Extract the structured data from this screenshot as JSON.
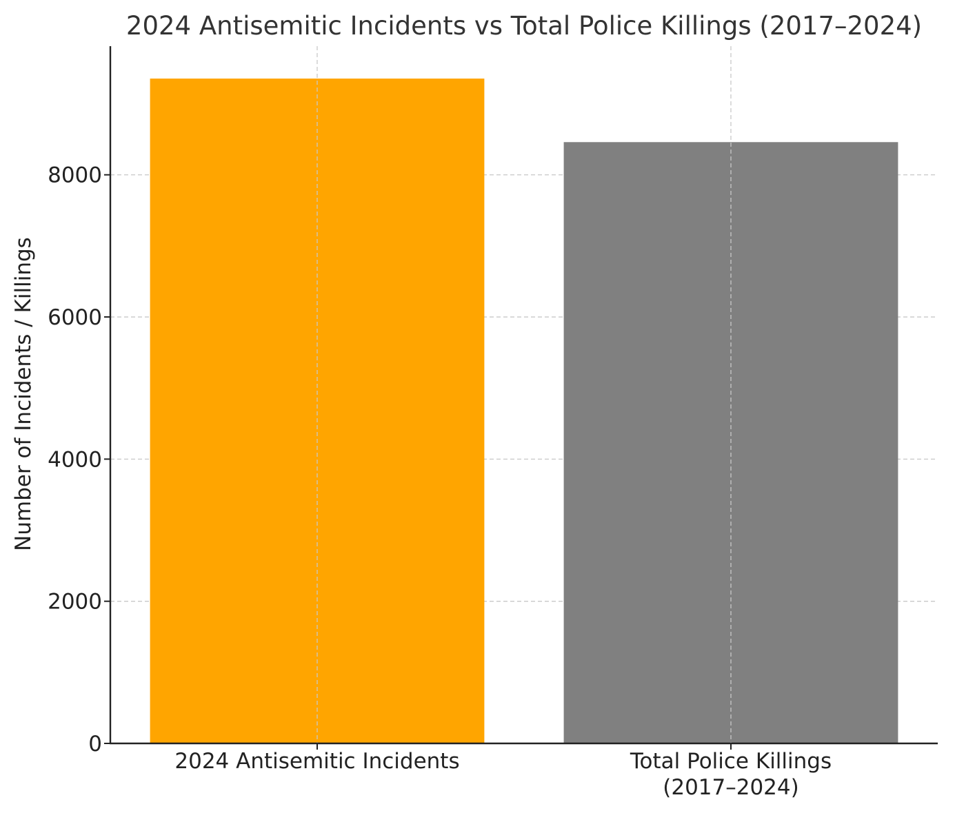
{
  "chart_data": {
    "type": "bar",
    "title": "2024 Antisemitic Incidents vs Total Police Killings (2017–2024)",
    "xlabel": "",
    "ylabel": "Number of Incidents / Killings",
    "categories": [
      [
        "2024 Antisemitic Incidents"
      ],
      [
        "Total Police Killings",
        "(2017–2024)"
      ]
    ],
    "values": [
      9354,
      8460
    ],
    "colors": [
      "#FFA500",
      "#808080"
    ],
    "ylim": [
      0,
      9810
    ],
    "yticks": [
      0,
      2000,
      4000,
      6000,
      8000
    ],
    "ytick_labels": [
      "0",
      "2000",
      "4000",
      "6000",
      "8000"
    ],
    "grid": true,
    "grid_style": "dashed",
    "legend": "none"
  }
}
